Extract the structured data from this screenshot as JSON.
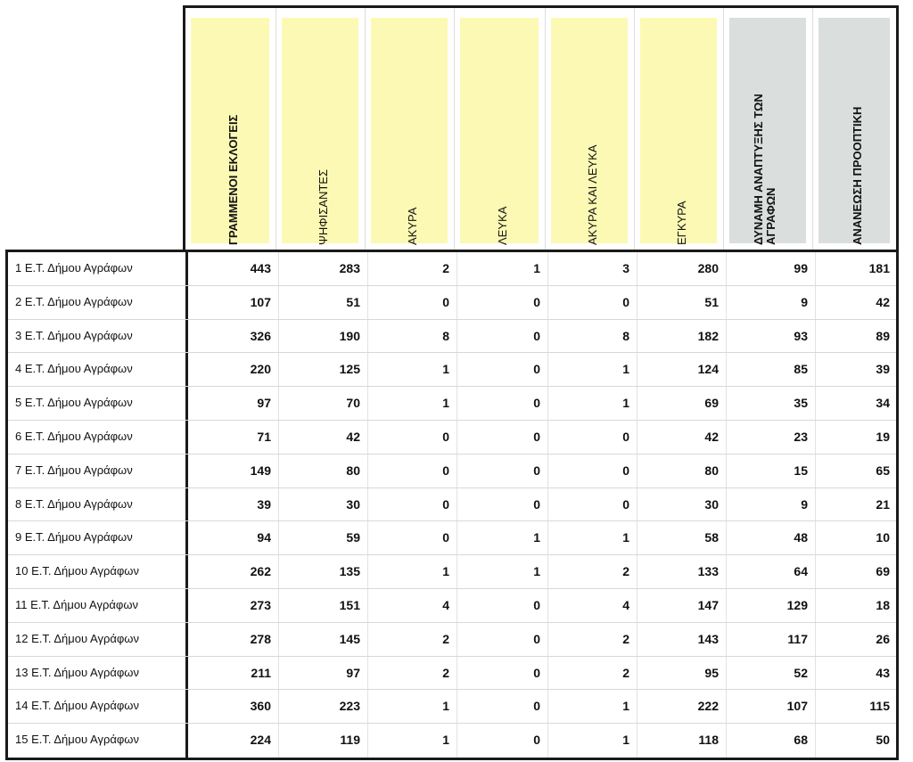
{
  "columns": [
    {
      "label": "ΓΡΑΜΜΕΝΟΙ ΕΚΛΟΓΕΙΣ",
      "bold": true,
      "color": "#fcf9b4"
    },
    {
      "label": "ΨΗΦΙΣΑΝΤΕΣ",
      "bold": false,
      "color": "#fcf9b4"
    },
    {
      "label": "ΑΚΥΡΑ",
      "bold": false,
      "color": "#fcf9b4"
    },
    {
      "label": "ΛΕΥΚΑ",
      "bold": false,
      "color": "#fcf9b4"
    },
    {
      "label": "ΑΚΥΡΑ ΚΑΙ ΛΕΥΚΑ",
      "bold": false,
      "color": "#fcf9b4"
    },
    {
      "label": "ΕΓΚΥΡΑ",
      "bold": false,
      "color": "#fcf9b4"
    },
    {
      "label": "ΔΥΝΑΜΗ ΑΝΑΠΤΥΞΗΣ ΤΩΝ ΑΓΡΑΦΩΝ",
      "bold": true,
      "color": "#dadedd"
    },
    {
      "label": "ΑΝΑΝΕΩΣΗ ΠΡΟΟΠΤΙΚΗ",
      "bold": true,
      "color": "#dadedd"
    }
  ],
  "rows": [
    {
      "label": "1 Ε.Τ. Δήμου Αγράφων",
      "values": [
        "443",
        "283",
        "2",
        "1",
        "3",
        "280",
        "99",
        "181"
      ]
    },
    {
      "label": "2 Ε.Τ. Δήμου Αγράφων",
      "values": [
        "107",
        "51",
        "0",
        "0",
        "0",
        "51",
        "9",
        "42"
      ]
    },
    {
      "label": "3 Ε.Τ. Δήμου Αγράφων",
      "values": [
        "326",
        "190",
        "8",
        "0",
        "8",
        "182",
        "93",
        "89"
      ]
    },
    {
      "label": "4 Ε.Τ. Δήμου Αγράφων",
      "values": [
        "220",
        "125",
        "1",
        "0",
        "1",
        "124",
        "85",
        "39"
      ]
    },
    {
      "label": "5 Ε.Τ. Δήμου Αγράφων",
      "values": [
        "97",
        "70",
        "1",
        "0",
        "1",
        "69",
        "35",
        "34"
      ]
    },
    {
      "label": "6 Ε.Τ. Δήμου Αγράφων",
      "values": [
        "71",
        "42",
        "0",
        "0",
        "0",
        "42",
        "23",
        "19"
      ]
    },
    {
      "label": "7 Ε.Τ. Δήμου Αγράφων",
      "values": [
        "149",
        "80",
        "0",
        "0",
        "0",
        "80",
        "15",
        "65"
      ]
    },
    {
      "label": "8 Ε.Τ. Δήμου Αγράφων",
      "values": [
        "39",
        "30",
        "0",
        "0",
        "0",
        "30",
        "9",
        "21"
      ]
    },
    {
      "label": "9 Ε.Τ. Δήμου Αγράφων",
      "values": [
        "94",
        "59",
        "0",
        "1",
        "1",
        "58",
        "48",
        "10"
      ]
    },
    {
      "label": "10 Ε.Τ. Δήμου Αγράφων",
      "values": [
        "262",
        "135",
        "1",
        "1",
        "2",
        "133",
        "64",
        "69"
      ]
    },
    {
      "label": "11 Ε.Τ. Δήμου Αγράφων",
      "values": [
        "273",
        "151",
        "4",
        "0",
        "4",
        "147",
        "129",
        "18"
      ]
    },
    {
      "label": "12 Ε.Τ. Δήμου Αγράφων",
      "values": [
        "278",
        "145",
        "2",
        "0",
        "2",
        "143",
        "117",
        "26"
      ]
    },
    {
      "label": "13 Ε.Τ. Δήμου Αγράφων",
      "values": [
        "211",
        "97",
        "2",
        "0",
        "2",
        "95",
        "52",
        "43"
      ]
    },
    {
      "label": "14 Ε.Τ. Δήμου Αγράφων",
      "values": [
        "360",
        "223",
        "1",
        "0",
        "1",
        "222",
        "107",
        "115"
      ]
    },
    {
      "label": "15 Ε.Τ. Δήμου Αγράφων",
      "values": [
        "224",
        "119",
        "1",
        "0",
        "1",
        "118",
        "68",
        "50"
      ]
    }
  ]
}
